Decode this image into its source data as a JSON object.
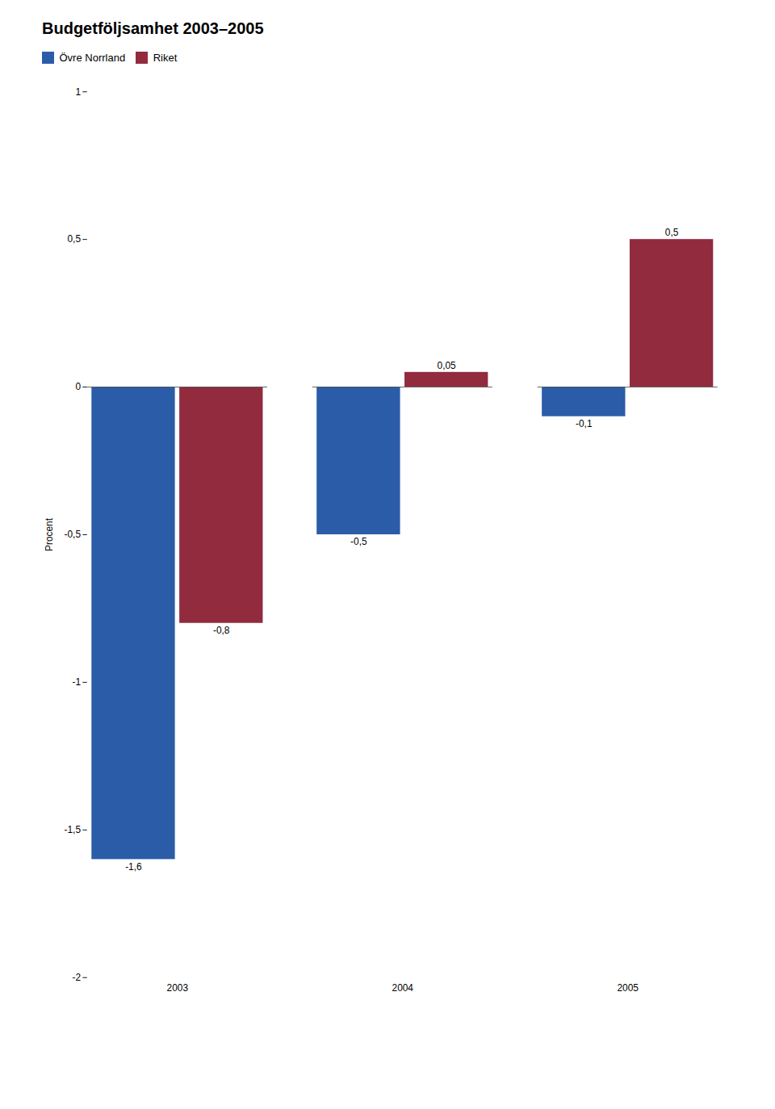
{
  "chart_data": {
    "type": "bar",
    "title": "Budgetföljsamhet 2003–2005",
    "ylabel": "Procent",
    "categories": [
      "2003",
      "2004",
      "2005"
    ],
    "series": [
      {
        "name": "Övre Norrland",
        "color": "#2b5ca8",
        "values": [
          -1.6,
          -0.5,
          -0.1
        ],
        "value_labels": [
          "-1,6",
          "-0,5",
          "-0,1"
        ]
      },
      {
        "name": "Riket",
        "color": "#922b3e",
        "values": [
          -0.8,
          0.05,
          0.5
        ],
        "value_labels": [
          "-0,8",
          "0,05",
          "0,5"
        ]
      }
    ],
    "ylim": [
      -2.0,
      1.0
    ],
    "yticks": [
      -2,
      {
        "value": -1.5,
        "label": "-1,5"
      },
      -1,
      {
        "value": -0.5,
        "label": "-0,5"
      },
      0,
      {
        "value": 0.5,
        "label": "0,5"
      },
      1
    ],
    "data_labels": true,
    "legend": "upper-left",
    "grid": false
  }
}
